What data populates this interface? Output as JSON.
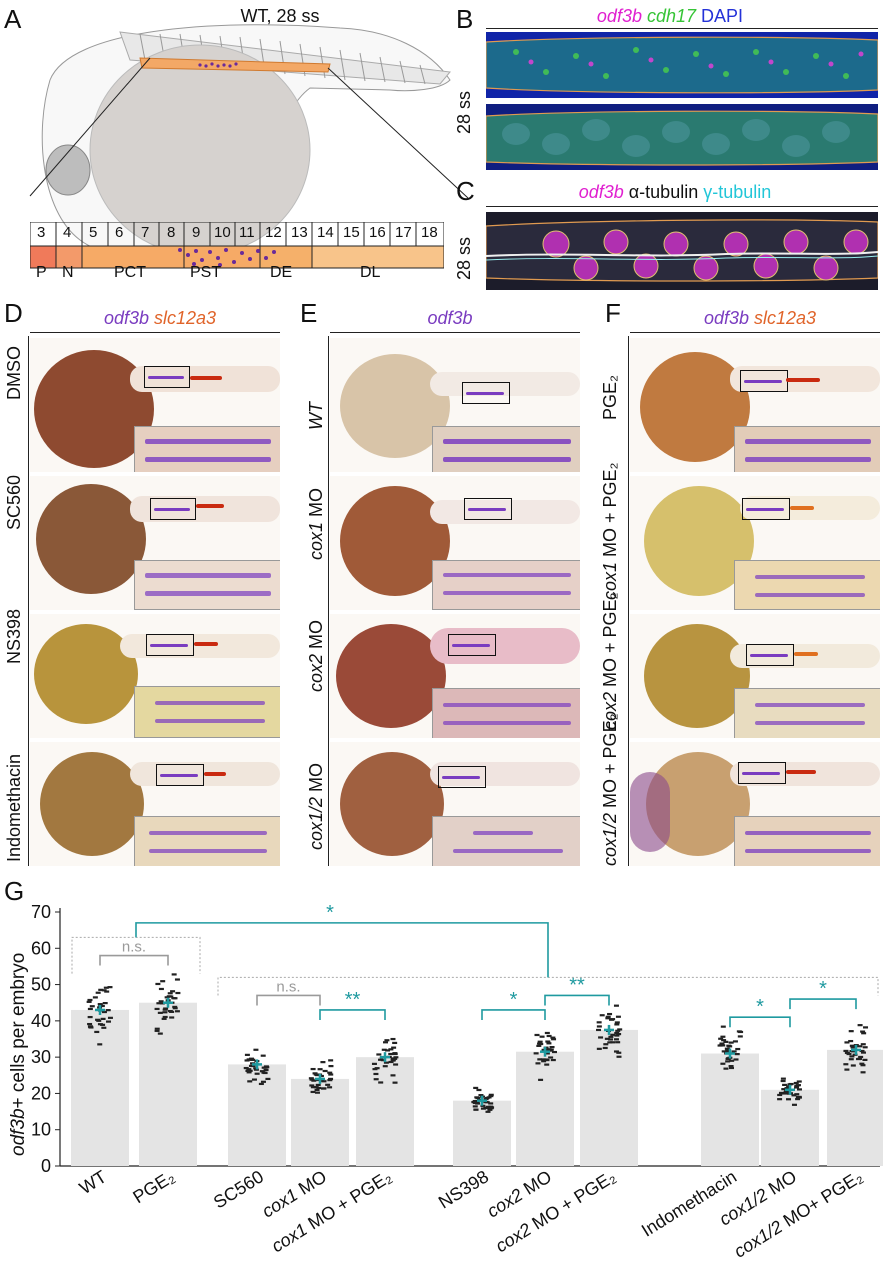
{
  "panels": {
    "A": {
      "letter": "A",
      "title": "WT, 28 ss",
      "segments": [
        "3",
        "4",
        "5",
        "6",
        "7",
        "8",
        "9",
        "10",
        "11",
        "12",
        "13",
        "14",
        "15",
        "16",
        "17",
        "18"
      ],
      "regions": [
        "P",
        "N",
        "PCT",
        "PST",
        "DE",
        "DL"
      ]
    },
    "B": {
      "letter": "B",
      "stain1": "odf3b",
      "stain2": "cdh17",
      "stain3": "DAPI",
      "stage": "28 ss"
    },
    "C": {
      "letter": "C",
      "stain1": "odf3b",
      "stain2": "α-tubulin",
      "stain3": "γ-tubulin",
      "stage": "28 ss"
    },
    "D": {
      "letter": "D",
      "stain1": "odf3b",
      "stain2": "slc12a3",
      "rows": [
        "DMSO",
        "SC560",
        "NS398",
        "Indomethacin"
      ]
    },
    "E": {
      "letter": "E",
      "stain1": "odf3b",
      "rows": [
        "WT",
        "cox1 MO",
        "cox2 MO",
        "cox1/2 MO"
      ]
    },
    "F": {
      "letter": "F",
      "stain1": "odf3b",
      "stain2": "slc12a3",
      "rows": [
        "PGE₂",
        "cox1 MO + PGE₂",
        "cox2 MO + PGE₂",
        "cox1/2 MO + PGE₂"
      ]
    },
    "G": {
      "letter": "G"
    }
  },
  "colors": {
    "magenta": "#e020d0",
    "green": "#36c436",
    "blue": "#2432d8",
    "cyan": "#22c6d8",
    "purple": "#7a3cc0",
    "orange": "#e0642a",
    "teal": "#1f9aa0",
    "gray": "#9a9a9a"
  },
  "chart_data": {
    "type": "bar",
    "ylabel_italic": "odf3b",
    "ylabel_rest": "+ cells per embryo",
    "ylim": [
      0,
      70
    ],
    "yticks": [
      "0",
      "10",
      "20",
      "30",
      "40",
      "50",
      "60",
      "70"
    ],
    "categories": [
      "WT",
      "PGE₂",
      "SC560",
      "cox1 MO",
      "cox1 MO + PGE₂",
      "NS398",
      "cox2 MO",
      "cox2 MO + PGE₂",
      "Indomethacin",
      "cox1/2 MO",
      "cox1/2 MO+ PGE₂"
    ],
    "values": [
      43,
      45,
      28,
      24,
      30,
      18,
      31.5,
      37.5,
      31,
      21,
      32
    ],
    "annotations": [
      {
        "text": "n.s.",
        "from": 0,
        "to": 1,
        "color": "gray"
      },
      {
        "text": "n.s.",
        "from": 2,
        "to": 3,
        "color": "gray"
      },
      {
        "text": "**",
        "from": 3,
        "to": 4,
        "color": "teal"
      },
      {
        "text": "*",
        "from": 5,
        "to": 6,
        "color": "teal"
      },
      {
        "text": "**",
        "from": 6,
        "to": 7,
        "color": "teal"
      },
      {
        "text": "*",
        "from": 8,
        "to": 9,
        "color": "teal"
      },
      {
        "text": "*",
        "from": 9,
        "to": 10,
        "color": "teal"
      },
      {
        "text": "*",
        "from": "group-controls",
        "to": "group-treated",
        "color": "teal"
      }
    ]
  }
}
